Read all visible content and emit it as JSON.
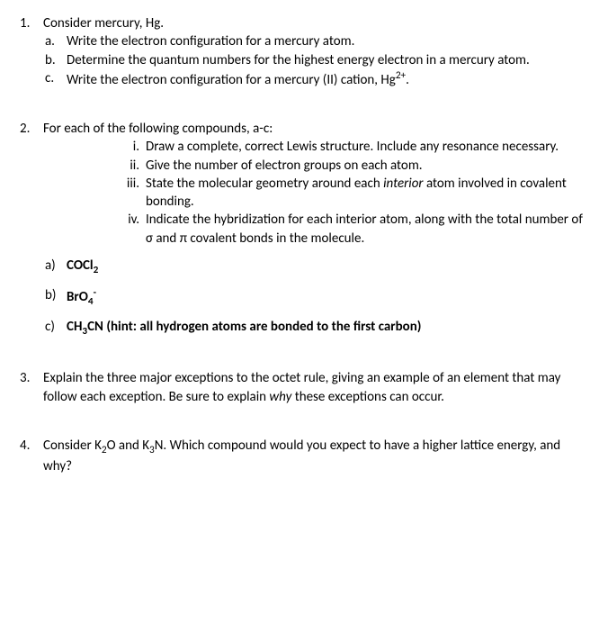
{
  "q1": {
    "num": "1.",
    "intro": "Consider mercury, Hg.",
    "a_lbl": "a.",
    "a": "Write the electron configuration for a mercury atom.",
    "b_lbl": "b.",
    "b": "Determine the quantum numbers for the highest energy electron in a mercury atom.",
    "c_lbl": "c.",
    "c_pre": "Write the electron configuration for a mercury (II) cation, Hg",
    "c_sup": "2+",
    "c_post": "."
  },
  "q2": {
    "num": "2.",
    "intro": "For each of the following compounds, a-c:",
    "i_lbl": "i.",
    "i": "Draw a complete, correct Lewis structure. Include any resonance necessary.",
    "ii_lbl": "ii.",
    "ii": "Give the number of electron groups on each atom.",
    "iii_lbl": "iii.",
    "iii_pre": "State the molecular geometry around each ",
    "iii_it": "interior",
    "iii_post": " atom involved in covalent bonding.",
    "iv_lbl": "iv.",
    "iv": "Indicate the hybridization for each interior atom, along with the total number of σ and π covalent bonds in the molecule.",
    "a_lbl": "a)",
    "a_pre": "COCl",
    "a_sub": "2",
    "b_lbl": "b)",
    "b_pre": "BrO",
    "b_sub": "4",
    "b_sup": "-",
    "c_lbl": "c)",
    "c_pre": "CH",
    "c_sub": "3",
    "c_post": "CN (hint: all hydrogen atoms are bonded to the first carbon)"
  },
  "q3": {
    "num": "3.",
    "pre": "Explain the three major exceptions to the octet rule, giving an example of an element that may follow each exception. Be sure to explain ",
    "it": "why",
    "post": " these exceptions can occur."
  },
  "q4": {
    "num": "4.",
    "pre": "Consider K",
    "s1": "2",
    "mid1": "O and K",
    "s2": "3",
    "mid2": "N. Which compound would you expect to have a higher lattice energy, and why?"
  }
}
